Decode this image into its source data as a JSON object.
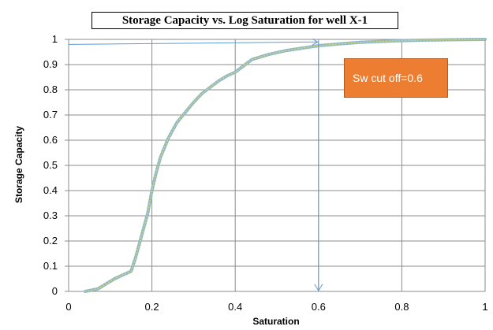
{
  "chart_data": {
    "type": "line",
    "title": "Storage Capacity vs. Log Saturation for well X-1",
    "xlabel": "Saturation",
    "ylabel": "Storage Capacity",
    "xlim": [
      0,
      1
    ],
    "ylim": [
      0,
      1
    ],
    "x_ticks": [
      "0",
      "0.2",
      "0.4",
      "0.6",
      "0.8",
      "1"
    ],
    "y_ticks": [
      "0",
      "0.1",
      "0.2",
      "0.3",
      "0.4",
      "0.5",
      "0.6",
      "0.7",
      "0.8",
      "0.9",
      "1"
    ],
    "grid": true,
    "series": [
      {
        "x": [
          0.04,
          0.07,
          0.09,
          0.11,
          0.13,
          0.15,
          0.16,
          0.17,
          0.18,
          0.19,
          0.2,
          0.21,
          0.22,
          0.23,
          0.24,
          0.25,
          0.26,
          0.28,
          0.3,
          0.32,
          0.34,
          0.36,
          0.38,
          0.4,
          0.42,
          0.44,
          0.48,
          0.52,
          0.56,
          0.6,
          0.65,
          0.7,
          0.75,
          0.8,
          0.85,
          0.9,
          0.95,
          1.0
        ],
        "y": [
          0.0,
          0.01,
          0.03,
          0.05,
          0.065,
          0.08,
          0.13,
          0.19,
          0.25,
          0.31,
          0.4,
          0.47,
          0.53,
          0.57,
          0.61,
          0.64,
          0.67,
          0.71,
          0.75,
          0.785,
          0.81,
          0.835,
          0.855,
          0.87,
          0.895,
          0.92,
          0.94,
          0.955,
          0.965,
          0.975,
          0.982,
          0.988,
          0.992,
          0.995,
          0.997,
          0.998,
          0.999,
          1.0
        ],
        "color": "#8fb8c8"
      }
    ],
    "annotations": {
      "callout": "Sw cut off=0.6",
      "cutoff_x": 0.6,
      "horizontal_line_y": [
        0.98,
        0.99
      ]
    },
    "colors": {
      "curve": "#8fb8c8",
      "curve_dots": "#d6d86a",
      "cutoff_line": "#5b9bd5",
      "callout_fill": "#ed7d31"
    }
  }
}
